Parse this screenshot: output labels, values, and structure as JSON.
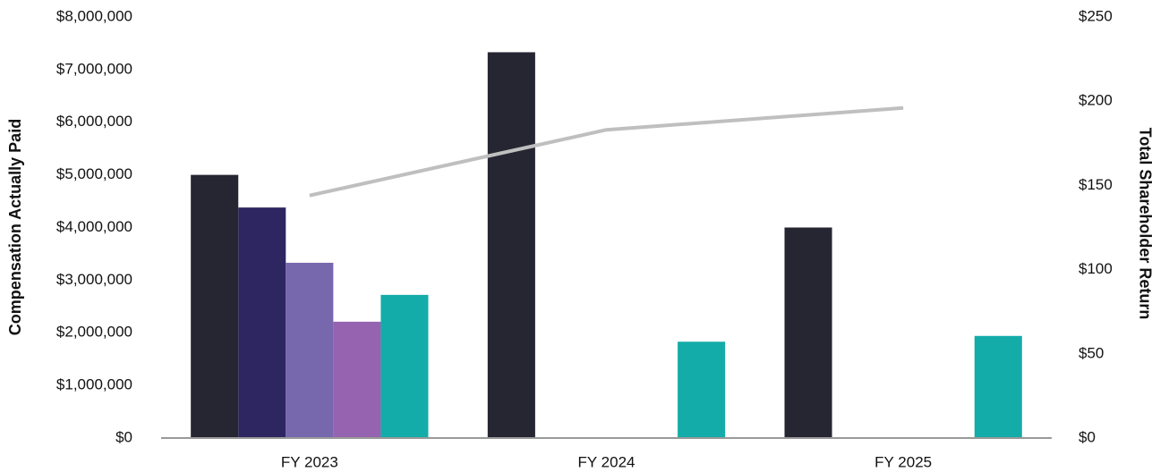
{
  "chart_data": {
    "type": "bar",
    "categories": [
      "FY 2023",
      "FY 2024",
      "FY 2025"
    ],
    "series": [
      {
        "color": "#262633",
        "values": [
          5000000,
          7330000,
          4000000
        ]
      },
      {
        "color": "#2e2660",
        "values": [
          4380000,
          null,
          null
        ]
      },
      {
        "color": "#7768ae",
        "values": [
          3330000,
          null,
          null
        ]
      },
      {
        "color": "#9563b0",
        "values": [
          2210000,
          null,
          null
        ]
      },
      {
        "color": "#14aca8",
        "values": [
          2720000,
          1830000,
          1940000
        ]
      },
      {
        "type": "line",
        "axis": "y2",
        "color": "#bfbfbf",
        "values": [
          144,
          183,
          196
        ]
      }
    ],
    "ylabel": "Compensation Actually Paid",
    "y2label": "Total Shareholder Return",
    "ylim": [
      0,
      8000000
    ],
    "yticks": [
      {
        "value": 0,
        "label": "$0"
      },
      {
        "value": 1000000,
        "label": "$1,000,000"
      },
      {
        "value": 2000000,
        "label": "$2,000,000"
      },
      {
        "value": 3000000,
        "label": "$3,000,000"
      },
      {
        "value": 4000000,
        "label": "$4,000,000"
      },
      {
        "value": 5000000,
        "label": "$5,000,000"
      },
      {
        "value": 6000000,
        "label": "$6,000,000"
      },
      {
        "value": 7000000,
        "label": "$7,000,000"
      },
      {
        "value": 8000000,
        "label": "$8,000,000"
      }
    ],
    "y2lim": [
      0,
      250
    ],
    "y2ticks": [
      {
        "value": 0,
        "label": "$0"
      },
      {
        "value": 50,
        "label": "$50"
      },
      {
        "value": 100,
        "label": "$100"
      },
      {
        "value": 150,
        "label": "$150"
      },
      {
        "value": 200,
        "label": "$200"
      },
      {
        "value": 250,
        "label": "$250"
      }
    ],
    "grid": false
  }
}
